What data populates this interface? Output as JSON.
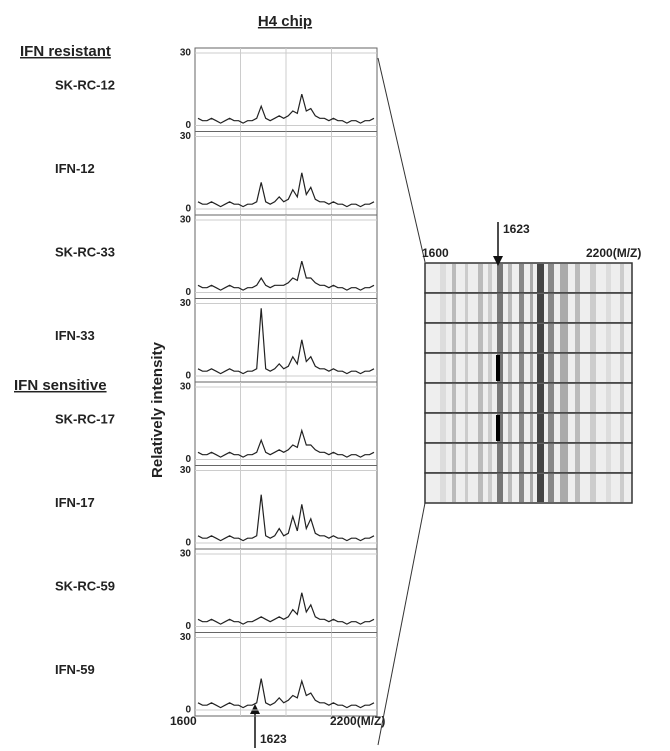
{
  "title": "H4 chip",
  "groups": [
    "IFN resistant",
    "IFN sensitive"
  ],
  "y_label": "Relatively intensity",
  "x_start": "1600",
  "x_end": "2200(M/Z)",
  "marker": "1623",
  "chart_data": [
    {
      "type": "line",
      "title": "SK-RC-12",
      "color": "#222",
      "ylim": [
        0,
        30
      ],
      "yticks": [
        0,
        30
      ],
      "grid": true,
      "values": [
        3,
        2,
        2,
        3,
        2,
        1,
        2,
        3,
        2,
        2,
        1,
        2,
        2,
        3,
        8,
        3,
        2,
        3,
        4,
        3,
        4,
        6,
        5,
        13,
        6,
        7,
        4,
        3,
        3,
        2,
        3,
        2,
        2,
        1,
        2,
        2,
        1,
        2,
        2,
        3
      ]
    },
    {
      "type": "line",
      "title": "IFN-12",
      "color": "#222",
      "ylim": [
        0,
        30
      ],
      "yticks": [
        0,
        30
      ],
      "grid": true,
      "values": [
        3,
        2,
        2,
        3,
        2,
        1,
        2,
        3,
        2,
        2,
        1,
        2,
        2,
        3,
        11,
        3,
        2,
        3,
        5,
        3,
        4,
        8,
        5,
        15,
        6,
        9,
        4,
        3,
        3,
        2,
        3,
        2,
        2,
        1,
        2,
        2,
        1,
        2,
        2,
        3
      ]
    },
    {
      "type": "line",
      "title": "SK-RC-33",
      "color": "#222",
      "ylim": [
        0,
        30
      ],
      "yticks": [
        0,
        30
      ],
      "grid": true,
      "values": [
        3,
        2,
        2,
        3,
        2,
        1,
        2,
        3,
        2,
        2,
        1,
        2,
        2,
        3,
        6,
        3,
        2,
        3,
        3,
        3,
        4,
        6,
        5,
        13,
        6,
        6,
        4,
        3,
        3,
        2,
        3,
        2,
        2,
        1,
        2,
        2,
        1,
        2,
        2,
        3
      ]
    },
    {
      "type": "line",
      "title": "IFN-33",
      "color": "#222",
      "ylim": [
        0,
        30
      ],
      "yticks": [
        0,
        30
      ],
      "grid": true,
      "values": [
        3,
        2,
        2,
        3,
        2,
        1,
        2,
        3,
        2,
        2,
        1,
        2,
        2,
        3,
        28,
        3,
        2,
        3,
        5,
        3,
        4,
        8,
        5,
        15,
        6,
        8,
        4,
        3,
        3,
        2,
        3,
        2,
        2,
        1,
        2,
        2,
        1,
        2,
        2,
        3
      ]
    },
    {
      "type": "line",
      "title": "SK-RC-17",
      "color": "#222",
      "ylim": [
        0,
        30
      ],
      "yticks": [
        0,
        30
      ],
      "grid": true,
      "values": [
        3,
        2,
        2,
        3,
        2,
        1,
        2,
        3,
        2,
        2,
        1,
        2,
        2,
        3,
        8,
        3,
        2,
        3,
        4,
        3,
        4,
        6,
        5,
        12,
        6,
        6,
        4,
        3,
        3,
        2,
        3,
        2,
        2,
        1,
        2,
        2,
        1,
        2,
        2,
        3
      ]
    },
    {
      "type": "line",
      "title": "IFN-17",
      "color": "#222",
      "ylim": [
        0,
        30
      ],
      "yticks": [
        0,
        30
      ],
      "grid": true,
      "values": [
        3,
        2,
        2,
        3,
        2,
        1,
        2,
        3,
        2,
        2,
        1,
        2,
        2,
        3,
        20,
        3,
        2,
        3,
        6,
        3,
        4,
        11,
        5,
        16,
        6,
        10,
        4,
        3,
        3,
        2,
        3,
        2,
        2,
        1,
        2,
        2,
        1,
        2,
        2,
        3
      ]
    },
    {
      "type": "line",
      "title": "SK-RC-59",
      "color": "#222",
      "ylim": [
        0,
        30
      ],
      "yticks": [
        0,
        30
      ],
      "grid": true,
      "values": [
        3,
        2,
        2,
        3,
        2,
        1,
        2,
        3,
        2,
        2,
        1,
        2,
        2,
        3,
        4,
        3,
        2,
        3,
        4,
        3,
        4,
        7,
        5,
        14,
        6,
        9,
        4,
        3,
        3,
        2,
        3,
        2,
        2,
        1,
        2,
        2,
        1,
        2,
        2,
        3
      ]
    },
    {
      "type": "line",
      "title": "IFN-59",
      "color": "#222",
      "ylim": [
        0,
        30
      ],
      "yticks": [
        0,
        30
      ],
      "grid": true,
      "values": [
        3,
        2,
        2,
        3,
        2,
        1,
        2,
        3,
        2,
        2,
        1,
        2,
        2,
        3,
        13,
        3,
        2,
        3,
        5,
        3,
        4,
        6,
        5,
        12,
        6,
        7,
        4,
        3,
        3,
        2,
        3,
        2,
        2,
        1,
        2,
        2,
        1,
        2,
        2,
        3
      ]
    }
  ]
}
